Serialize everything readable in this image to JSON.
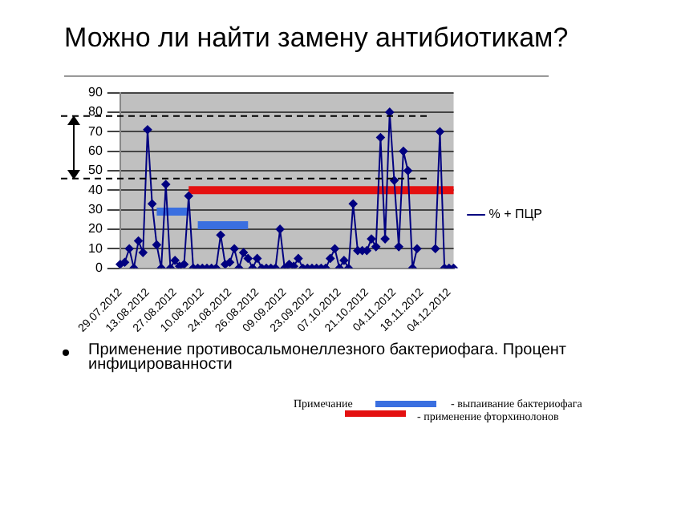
{
  "chart_data": {
    "type": "line",
    "title": "Можно ли найти замену антибиотикам?",
    "categories": [
      "29.07.2012",
      null,
      null,
      null,
      null,
      null,
      "13.08.2012",
      null,
      null,
      null,
      null,
      null,
      "27.08.2012",
      null,
      null,
      null,
      null,
      null,
      "10.08.2012",
      null,
      null,
      null,
      null,
      null,
      "24.08.2012",
      null,
      null,
      null,
      null,
      null,
      "26.08.2012",
      null,
      null,
      null,
      null,
      null,
      "09.09.2012",
      null,
      null,
      null,
      null,
      null,
      "23.09.2012",
      null,
      null,
      null,
      null,
      null,
      "07.10.2012",
      null,
      null,
      null,
      null,
      null,
      "21.10.2012",
      null,
      null,
      null,
      null,
      null,
      "04.11.2012",
      null,
      null,
      null,
      null,
      null,
      "18.11.2012",
      null,
      null,
      null,
      null,
      null,
      "04.12.2012",
      null
    ],
    "series": [
      {
        "name": "% + ПЦР",
        "color": "#000080",
        "values": [
          2,
          3,
          10,
          0,
          14,
          8,
          71,
          33,
          12,
          0,
          43,
          0,
          4,
          1,
          2,
          37,
          0,
          0,
          0,
          0,
          0,
          0,
          17,
          2,
          3,
          10,
          0,
          8,
          5,
          0,
          5,
          0,
          0,
          0,
          0,
          20,
          0,
          2,
          1,
          5,
          0,
          0,
          0,
          0,
          0,
          0,
          5,
          10,
          0,
          4,
          0,
          33,
          9,
          9,
          9,
          15,
          11,
          67,
          15,
          80,
          45,
          11,
          60,
          50,
          0,
          10,
          null,
          null,
          null,
          10,
          70,
          0,
          0,
          0
        ]
      },
      {
        "type": "line",
        "color": "#e41010",
        "marker": "none",
        "values": [
          null,
          null,
          null,
          null,
          null,
          null,
          null,
          null,
          null,
          null,
          null,
          null,
          null,
          null,
          null,
          40,
          40,
          40,
          40,
          40,
          40,
          40,
          40,
          40,
          40,
          40,
          40,
          40,
          40,
          40,
          40,
          40,
          40,
          40,
          40,
          40,
          40,
          40,
          40,
          40,
          40,
          40,
          40,
          40,
          40,
          40,
          40,
          40,
          40,
          40,
          40,
          40,
          40,
          40,
          40,
          40,
          40,
          40,
          40,
          40,
          40,
          40,
          40,
          40,
          40,
          40,
          40,
          40,
          40,
          40,
          40,
          40,
          40,
          40
        ]
      },
      {
        "type": "line",
        "color": "#3a6fe0",
        "marker": "none",
        "values": [
          null,
          null,
          null,
          null,
          null,
          null,
          null,
          null,
          29,
          29,
          29,
          29,
          29,
          29,
          29,
          29,
          null,
          null,
          null,
          null,
          null,
          null,
          null,
          null,
          null,
          null,
          null,
          null,
          null,
          null,
          null,
          null,
          null,
          null,
          null,
          null,
          null,
          null,
          null,
          null,
          null,
          null,
          null,
          null,
          null,
          null,
          null,
          null,
          null,
          null,
          null,
          null,
          null,
          null,
          null,
          null,
          null,
          null,
          null,
          null,
          null,
          null,
          null,
          null,
          null,
          null,
          null,
          null,
          null,
          null,
          null,
          null,
          null,
          null
        ]
      },
      {
        "type": "line",
        "color": "#3a6fe0",
        "marker": "none",
        "values": [
          null,
          null,
          null,
          null,
          null,
          null,
          null,
          null,
          null,
          null,
          null,
          null,
          null,
          null,
          null,
          null,
          null,
          22,
          22,
          22,
          22,
          22,
          22,
          22,
          22,
          22,
          22,
          22,
          22,
          null,
          null,
          null,
          null,
          null,
          null,
          null,
          null,
          null,
          null,
          null,
          null,
          null,
          null,
          null,
          null,
          null,
          null,
          null,
          null,
          null,
          null,
          null,
          null,
          null,
          null,
          null,
          null,
          null,
          null,
          null,
          null,
          null,
          null,
          null,
          null,
          null,
          null,
          null,
          null,
          null,
          null,
          null,
          null,
          null
        ]
      }
    ],
    "ylim": [
      0,
      90
    ],
    "yticks": [
      0,
      10,
      20,
      30,
      40,
      50,
      60,
      70,
      80,
      90
    ],
    "grid": "y",
    "legend": "right",
    "marker": "diamond",
    "ref_lines": [
      {
        "axis": "y",
        "value": 78,
        "line_style": "dashed",
        "color": "#000000"
      },
      {
        "axis": "y",
        "value": 46,
        "line_style": "dashed",
        "color": "#000000"
      }
    ],
    "annotations": [
      "Применение противосальмонеллезного бактериофага. Процент инфицированности",
      "Примечание",
      "- выпаивание бактериофага",
      "- применение фторхинолонов"
    ]
  }
}
